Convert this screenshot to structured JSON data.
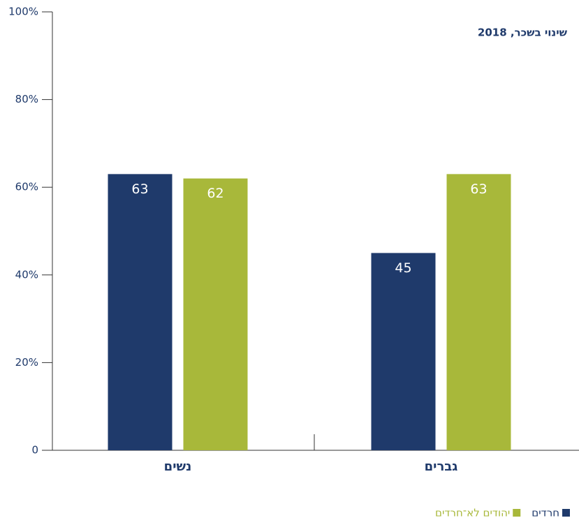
{
  "chart_data": {
    "type": "bar",
    "title": "שינוי בשכר, 2018",
    "categories": [
      "נשים",
      "גברים"
    ],
    "series": [
      {
        "name": "חרדים",
        "color": "#1f3a6b",
        "values": [
          63,
          45
        ]
      },
      {
        "name": "יהודים לא־חרדים",
        "color": "#a8b83a",
        "values": [
          62,
          63
        ]
      }
    ],
    "ylim": [
      0,
      100
    ],
    "yticks": [
      0,
      {
        "value": 20,
        "label": "20%"
      },
      {
        "value": 40,
        "label": "40%"
      },
      {
        "value": 60,
        "label": "60%"
      },
      {
        "value": 80,
        "label": "80%"
      },
      {
        "value": 100,
        "label": "100%"
      }
    ],
    "grid": false
  }
}
